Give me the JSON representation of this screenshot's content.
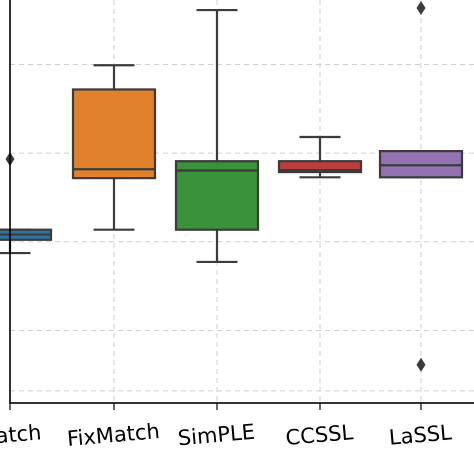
{
  "chart_data": {
    "type": "box",
    "title": "",
    "xlabel": "",
    "ylabel": "",
    "ylim": [
      0,
      1
    ],
    "grid": true,
    "categories": [
      "FlexMatch",
      "FixMatch",
      "SimPLE",
      "CCSSL",
      "LaSSL"
    ],
    "tick_labels": [
      "Match",
      "FixMatch",
      "SimPLE",
      "CCSSL",
      "LaSSL"
    ],
    "series": [
      {
        "category": "FlexMatch",
        "color": "#3274a1",
        "whisker_low": 0.372,
        "q1": 0.405,
        "median": 0.418,
        "q3": 0.43,
        "whisker_high": 0.43,
        "fliers": [
          0.605
        ]
      },
      {
        "category": "FixMatch",
        "color": "#e1812c",
        "whisker_low": 0.43,
        "q1": 0.558,
        "median": 0.58,
        "q3": 0.778,
        "whisker_high": 0.838,
        "fliers": []
      },
      {
        "category": "SimPLE",
        "color": "#3a923a",
        "whisker_low": 0.35,
        "q1": 0.43,
        "median": 0.577,
        "q3": 0.6,
        "whisker_high": 0.975,
        "fliers": []
      },
      {
        "category": "CCSSL",
        "color": "#c03d3e",
        "whisker_low": 0.56,
        "q1": 0.573,
        "median": 0.578,
        "q3": 0.6,
        "whisker_high": 0.66,
        "fliers": []
      },
      {
        "category": "LaSSL",
        "color": "#9372b2",
        "whisker_low": 0.56,
        "q1": 0.56,
        "median": 0.59,
        "q3": 0.625,
        "whisker_high": 0.625,
        "fliers": [
          0.98,
          0.095
        ]
      }
    ]
  }
}
